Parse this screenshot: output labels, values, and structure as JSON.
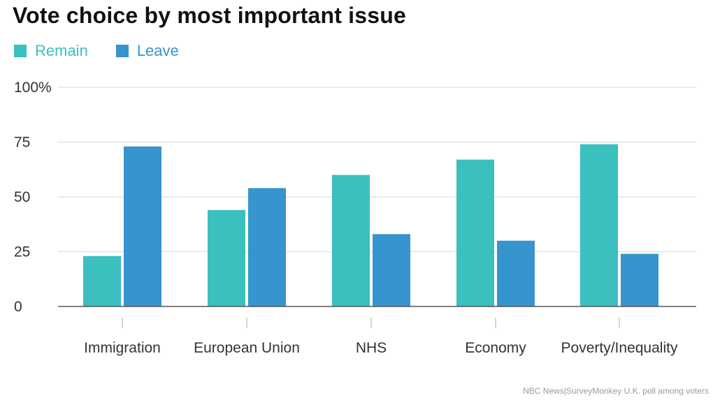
{
  "chart_data": {
    "type": "bar",
    "title": "Vote choice by most important issue",
    "categories": [
      "Immigration",
      "European Union",
      "NHS",
      "Economy",
      "Poverty/Inequality"
    ],
    "series": [
      {
        "name": "Remain",
        "color": "#3bbfbf",
        "values": [
          23,
          44,
          60,
          67,
          74
        ]
      },
      {
        "name": "Leave",
        "color": "#3694cf",
        "values": [
          73,
          54,
          33,
          30,
          24
        ]
      }
    ],
    "ylim": [
      0,
      100
    ],
    "yticks": [
      0,
      25,
      50,
      75,
      100
    ],
    "ytick_labels": [
      "0",
      "25",
      "50",
      "75",
      "100%"
    ],
    "xlabel": "",
    "ylabel": "",
    "grid": true,
    "legend_position": "top-left",
    "source": "NBC News|SurveyMonkey U.K. poll among voters"
  }
}
